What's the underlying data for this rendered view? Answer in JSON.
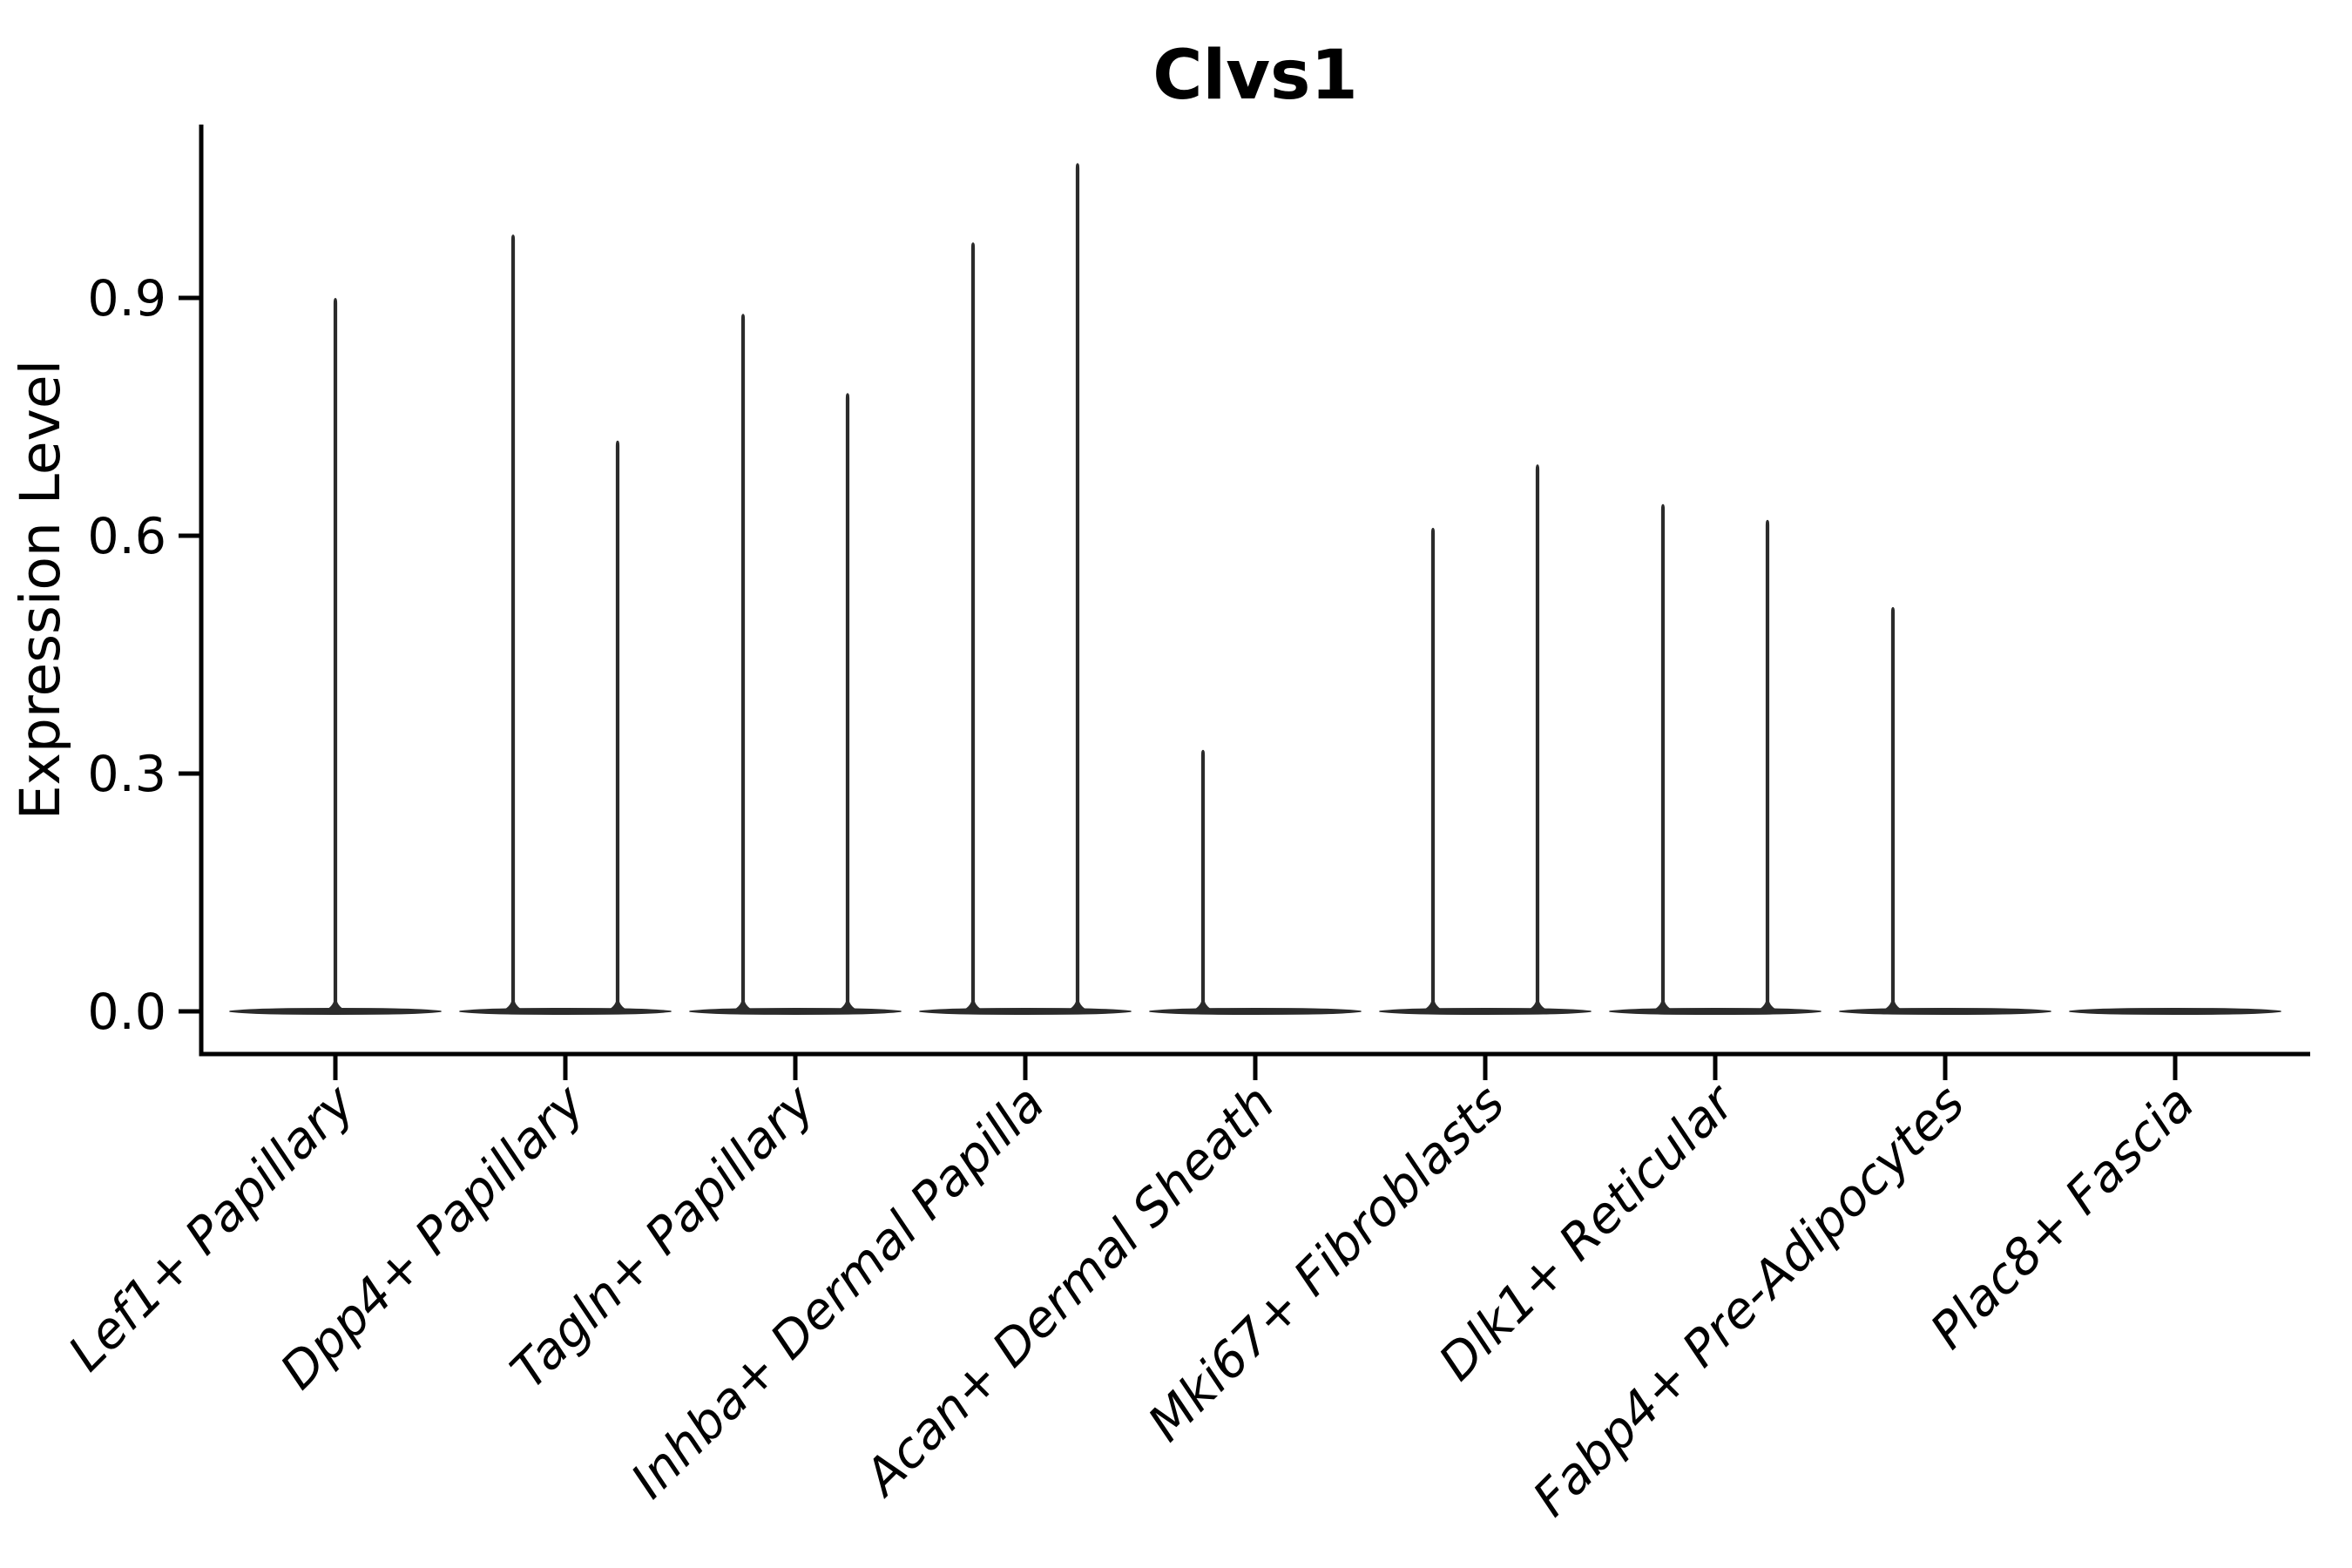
{
  "figure": {
    "title": "Clvs1"
  },
  "colors": {
    "background": "#ffffff",
    "axis": "#000000",
    "text": "#000000",
    "violin": "#2b2b2b"
  },
  "chart_data": {
    "type": "violin",
    "title": "Clvs1",
    "xlabel": "",
    "ylabel": "Expression Level",
    "yticks": [
      0.0,
      0.3,
      0.6,
      0.9
    ],
    "ytick_labels": [
      "0.0",
      "0.3",
      "0.6",
      "0.9"
    ],
    "ylim": [
      -0.054,
      1.12
    ],
    "grid": false,
    "legend": "none",
    "categories": [
      "Lef1+ Papillary",
      "Dpp4+ Papillary",
      "Tagln+ Papillary",
      "Inhba+ Dermal Papilla",
      "Acan+ Dermal Sheath",
      "Mki67+ Fibroblasts",
      "Dlk1+ Reticular",
      "Fabp4+ Pre-Adipocytes",
      "Plac8+ Fascia"
    ],
    "groups": [
      {
        "category": "Lef1+ Papillary",
        "violins": [
          {
            "split": "center",
            "peak_expression": 0.9
          }
        ]
      },
      {
        "category": "Dpp4+ Papillary",
        "violins": [
          {
            "split": "left",
            "peak_expression": 0.98
          },
          {
            "split": "right",
            "peak_expression": 0.72
          }
        ]
      },
      {
        "category": "Tagln+ Papillary",
        "violins": [
          {
            "split": "left",
            "peak_expression": 0.88
          },
          {
            "split": "right",
            "peak_expression": 0.78
          }
        ]
      },
      {
        "category": "Inhba+ Dermal Papilla",
        "violins": [
          {
            "split": "left",
            "peak_expression": 0.97
          },
          {
            "split": "right",
            "peak_expression": 1.07
          }
        ]
      },
      {
        "category": "Acan+ Dermal Sheath",
        "violins": [
          {
            "split": "left",
            "peak_expression": 0.33
          }
        ]
      },
      {
        "category": "Mki67+ Fibroblasts",
        "violins": [
          {
            "split": "left",
            "peak_expression": 0.61
          },
          {
            "split": "right",
            "peak_expression": 0.69
          }
        ]
      },
      {
        "category": "Dlk1+ Reticular",
        "violins": [
          {
            "split": "left",
            "peak_expression": 0.64
          },
          {
            "split": "right",
            "peak_expression": 0.62
          }
        ]
      },
      {
        "category": "Fabp4+ Pre-Adipocytes",
        "violins": [
          {
            "split": "left",
            "peak_expression": 0.51
          }
        ]
      },
      {
        "category": "Plac8+ Fascia",
        "violins": []
      }
    ],
    "baseline_value": 0.0
  }
}
